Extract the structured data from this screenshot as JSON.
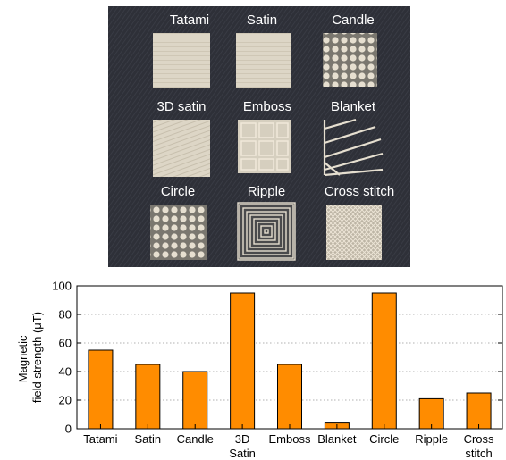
{
  "photo": {
    "labels": [
      "Tatami",
      "Satin",
      "Candle",
      "3D satin",
      "Emboss",
      "Blanket",
      "Circle",
      "Ripple",
      "Cross stitch"
    ]
  },
  "chart_data": {
    "type": "bar",
    "categories": [
      [
        "Tatami"
      ],
      [
        "Satin"
      ],
      [
        "Candle"
      ],
      [
        "3D",
        "Satin"
      ],
      [
        "Emboss"
      ],
      [
        "Blanket"
      ],
      [
        "Circle"
      ],
      [
        "Ripple"
      ],
      [
        "Cross",
        "stitch"
      ]
    ],
    "values": [
      55,
      45,
      40,
      95,
      45,
      4,
      95,
      21,
      25
    ],
    "ylabel_lines": [
      "Magnetic",
      "field strength (μT)"
    ],
    "ylim": [
      0,
      100
    ],
    "yticks": [
      0,
      20,
      40,
      60,
      80,
      100
    ],
    "grid": true,
    "bar_color": "#ff8c00"
  }
}
